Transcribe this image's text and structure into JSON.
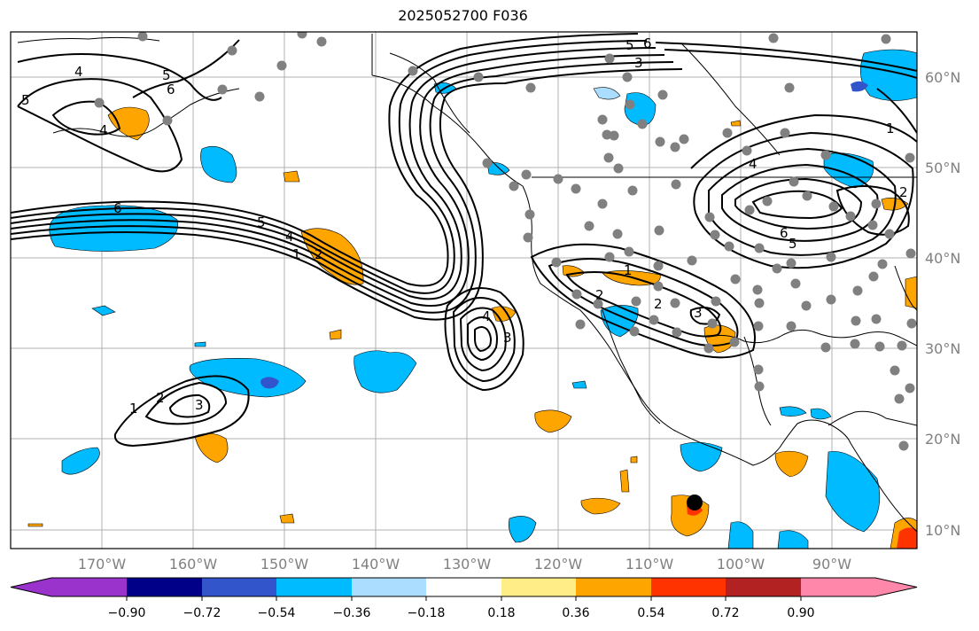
{
  "title": "2025052700 F036",
  "lat_labels": [
    "60°N",
    "50°N",
    "40°N",
    "30°N",
    "20°N",
    "10°N"
  ],
  "lon_labels": [
    "170°W",
    "160°W",
    "150°W",
    "140°W",
    "130°W",
    "120°W",
    "110°W",
    "100°W",
    "90°W"
  ],
  "colorbar": {
    "colors": [
      "#9933cc",
      "#000088",
      "#3355cc",
      "#00bbff",
      "#aaddff",
      "#ffffff",
      "#ffee88",
      "#ffa500",
      "#ff3300",
      "#b22222",
      "#ff88aa"
    ],
    "tick_labels": [
      "−0.90",
      "−0.72",
      "−0.54",
      "−0.36",
      "−0.18",
      "0.18",
      "0.36",
      "0.54",
      "0.72",
      "0.90"
    ]
  },
  "contour_labels": [
    "1",
    "2",
    "3",
    "4",
    "5",
    "6"
  ],
  "colors": {
    "cool": "#00bbff",
    "cool_dark": "#3355cc",
    "warm": "#ffa500",
    "warm_dark": "#ff3300",
    "station": "#808080",
    "grid": "#b0b0b0"
  }
}
